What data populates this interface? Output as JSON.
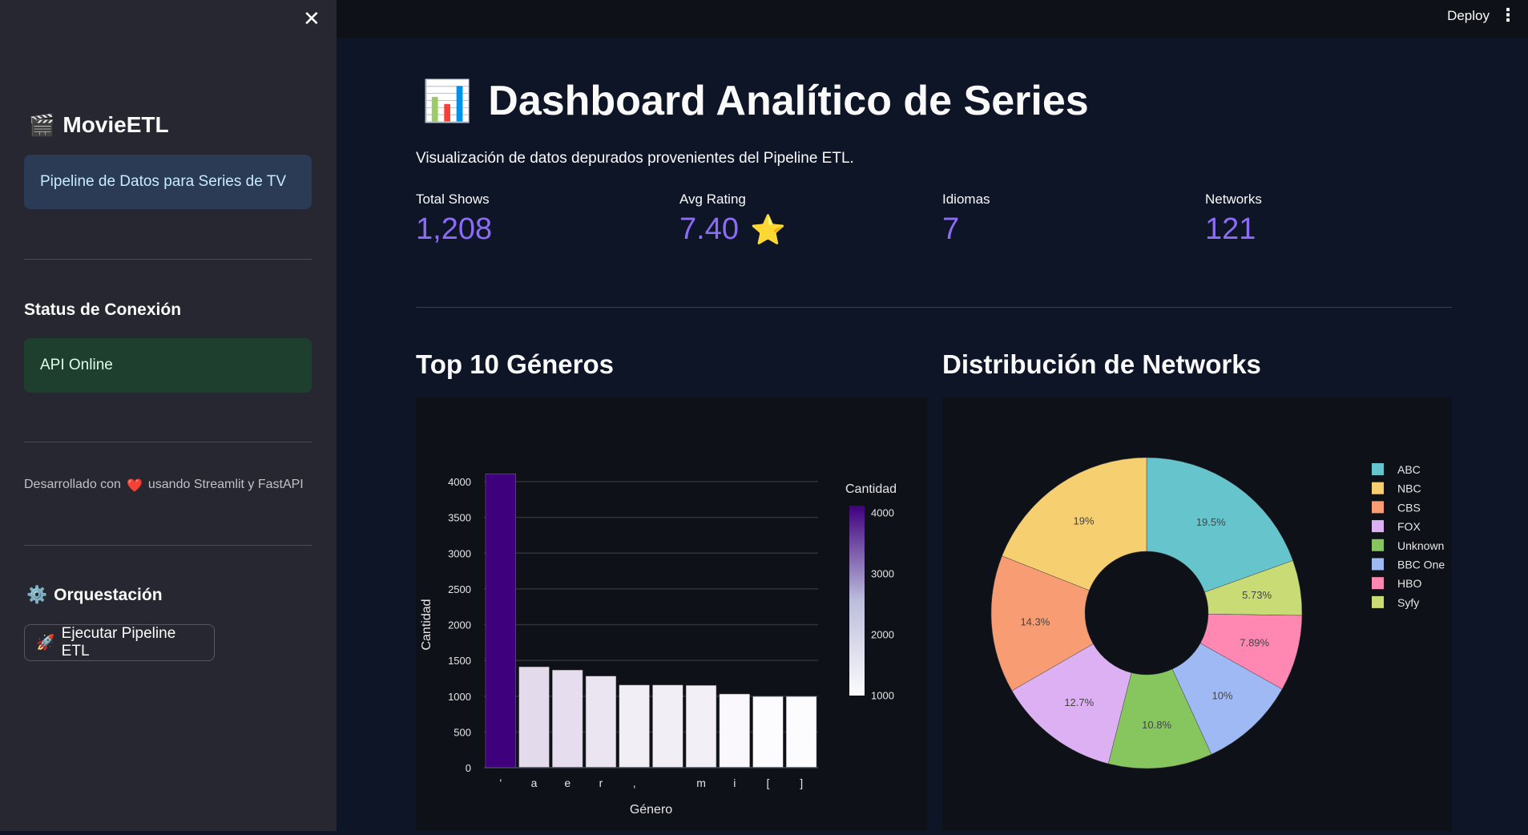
{
  "sidebar": {
    "close_icon": "close-icon",
    "brand": {
      "icon": "🎬",
      "title": "MovieETL"
    },
    "info_box": "Pipeline de Datos para Series de TV",
    "status_heading": "Status de Conexión",
    "status_box": "API Online",
    "footer": {
      "prefix": "Desarrollado con",
      "heart": "❤️",
      "suffix": "usando Streamlit y FastAPI"
    },
    "orchestration": {
      "icon": "⚙️",
      "heading": "Orquestación"
    },
    "run_button": {
      "icon": "🚀",
      "label": "Ejecutar Pipeline ETL"
    }
  },
  "topbar": {
    "deploy": "Deploy",
    "menu_icon": "more-vertical-icon"
  },
  "main": {
    "title_icon": "📊",
    "title": "Dashboard Analítico de Series",
    "subtitle": "Visualización de datos depurados provenientes del Pipeline ETL.",
    "metrics": [
      {
        "label": "Total Shows",
        "value": "1,208",
        "suffix": ""
      },
      {
        "label": "Avg Rating",
        "value": "7.40",
        "suffix": "⭐"
      },
      {
        "label": "Idiomas",
        "value": "7",
        "suffix": ""
      },
      {
        "label": "Networks",
        "value": "121",
        "suffix": ""
      }
    ],
    "sections": {
      "genres": "Top 10 Géneros",
      "networks": "Distribución de Networks"
    }
  },
  "colors": {
    "metric": "#8c6cf5",
    "sidebar_bg": "#262730",
    "chart_bg": "#0e1117",
    "info_bg": "#2b3b55",
    "success_bg": "#1e3f2e"
  },
  "chart_data": [
    {
      "type": "bar",
      "xlabel": "Género",
      "ylabel": "Cantidad",
      "categories": [
        "'",
        "a",
        "e",
        "r",
        ",",
        " ",
        "m",
        "i",
        "[",
        "]"
      ],
      "values": [
        4110,
        1410,
        1365,
        1280,
        1155,
        1155,
        1150,
        1030,
        995,
        995
      ],
      "ylim": [
        0,
        4000
      ],
      "yticks": [
        0,
        500,
        1000,
        1500,
        2000,
        2500,
        3000,
        3500,
        4000
      ],
      "grid": true,
      "colorbar": {
        "title": "Cantidad",
        "ticks": [
          1000,
          2000,
          3000,
          4000
        ],
        "range": [
          995,
          4110
        ],
        "colorscale": [
          "#ffffff",
          "#3f007d"
        ]
      }
    },
    {
      "type": "pie",
      "hole": 0.4,
      "legend": "top-right",
      "labels": [
        "ABC",
        "NBC",
        "CBS",
        "FOX",
        "Unknown",
        "BBC One",
        "HBO",
        "Syfy"
      ],
      "values": [
        19.5,
        19,
        14.3,
        12.7,
        10.8,
        10,
        7.89,
        5.73
      ],
      "text": [
        "19.5%",
        "19%",
        "14.3%",
        "12.7%",
        "10.8%",
        "10%",
        "7.89%",
        "5.73%"
      ],
      "colors": [
        "#66c5cc",
        "#f6cf71",
        "#f89c74",
        "#dcb0f2",
        "#87c55f",
        "#9eb9f3",
        "#fe88b1",
        "#c9db74"
      ],
      "draw_order": [
        "ABC",
        "Syfy",
        "HBO",
        "BBC One",
        "Unknown",
        "FOX",
        "CBS",
        "NBC"
      ]
    }
  ]
}
